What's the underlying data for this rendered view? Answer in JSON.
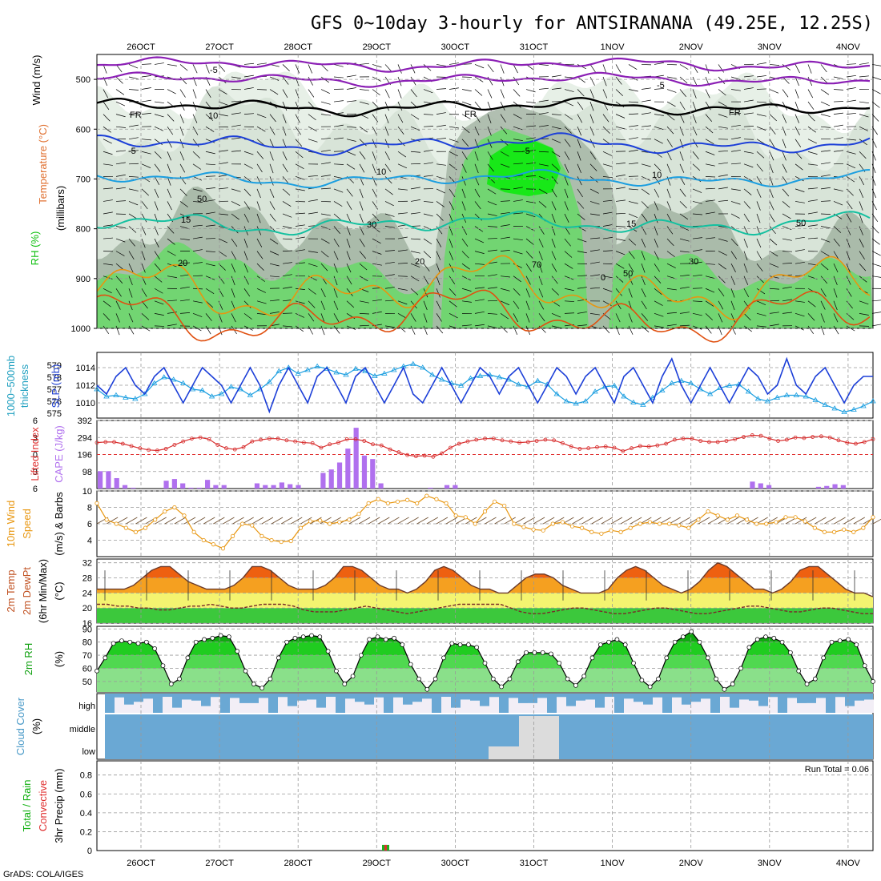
{
  "title": "GFS 0~10day 3-hourly for ANTSIRANANA (49.25E, 12.25S)",
  "footer": "GrADS: COLA/IGES",
  "date_labels": [
    "26OCT",
    "27OCT",
    "28OCT",
    "29OCT",
    "30OCT",
    "31OCT",
    "1NOV",
    "2NOV",
    "3NOV",
    "4NOV"
  ],
  "colors": {
    "purple": "#8b1fb5",
    "blue": "#1c3fd8",
    "cyan": "#1a9ee0",
    "teal": "#14c0a0",
    "orange": "#e8960f",
    "red": "#e05010",
    "rh_light": "#d7e3d7",
    "rh_mid": "#a8b8a8",
    "green_l": "#6fd66f",
    "green_b": "#18e818"
  },
  "panels": {
    "upper": {
      "ylabels": [
        "Temperature",
        "(°C)",
        "Wind",
        "(m/s)",
        "RH (%)",
        "(millibars)"
      ]
    },
    "slp": {
      "ylabels": [
        "1000~500mb",
        "thickness",
        "(dm)",
        "SLP (mb)"
      ]
    },
    "cape": {
      "ylabels": [
        "Lifted Index",
        "CAPE (J/kg)"
      ]
    },
    "wind10": {
      "ylabels": [
        "10m Wind",
        "Speed",
        "(m/s) & Barbs"
      ]
    },
    "temp2m": {
      "ylabels": [
        "2m Temp",
        "2m DewPt",
        "(6hr Min/Max)",
        "(°C)"
      ]
    },
    "rh2m": {
      "ylabels": [
        "2m RH",
        "(%)"
      ]
    },
    "cloud": {
      "ylabels": [
        "Cloud Cover",
        "(%)"
      ],
      "levels": [
        "high",
        "middle",
        "low"
      ]
    },
    "precip": {
      "ylabels": [
        "Total / Rain",
        "Convective",
        "3hr Precip (mm)"
      ],
      "run_total": "Run Total = 0.06"
    }
  },
  "chart_data": [
    {
      "type": "heatmap",
      "name": "upper",
      "y_ticks": [
        500,
        600,
        700,
        800,
        900,
        1000
      ],
      "contour_labels": [
        "-5",
        "-5",
        "FR",
        "FR",
        "FR",
        "-5",
        "-5",
        "10",
        "10",
        "15",
        "15",
        "20",
        "20",
        "50",
        "50",
        "30",
        "30",
        "70",
        "50",
        "0",
        "10"
      ]
    },
    {
      "type": "line",
      "name": "slp_thickness",
      "left_ticks": [
        575,
        576,
        577,
        578,
        579
      ],
      "right_ticks": [
        1010,
        1012,
        1014
      ],
      "slp": [
        1012,
        1011,
        1013,
        1014,
        1012,
        1011,
        1013,
        1014,
        1012,
        1010,
        1012,
        1014,
        1013,
        1012,
        1010,
        1012,
        1014,
        1012,
        1009,
        1012,
        1014,
        1012,
        1010,
        1013,
        1014,
        1012,
        1010,
        1013,
        1014,
        1012,
        1010,
        1012,
        1014,
        1011,
        1010,
        1012,
        1014,
        1012,
        1010,
        1012,
        1014,
        1013,
        1011,
        1013,
        1014,
        1012,
        1010,
        1012,
        1014,
        1013,
        1011,
        1013,
        1014,
        1012,
        1010,
        1013,
        1014,
        1012,
        1010,
        1013,
        1015,
        1012,
        1010,
        1012,
        1014,
        1012,
        1010,
        1012,
        1014,
        1013,
        1011,
        1012,
        1015,
        1012,
        1011,
        1013,
        1014,
        1012,
        1010,
        1012,
        1013,
        1013
      ],
      "thickness": [
        577.0,
        576.4,
        576.5,
        576.3,
        576.2,
        576.6,
        577.5,
        578.0,
        577.8,
        577.5,
        577.0,
        576.9,
        576.4,
        576.6,
        577.2,
        577.0,
        576.5,
        577.0,
        577.6,
        578.5,
        578.8,
        578.3,
        578.6,
        578.9,
        578.7,
        578.4,
        578.2,
        578.7,
        578.5,
        578.1,
        578.3,
        578.6,
        578.9,
        579.1,
        578.8,
        578.2,
        577.8,
        577.5,
        577.3,
        577.9,
        578.1,
        578.2,
        578.0,
        577.8,
        577.4,
        577.2,
        577.7,
        577.4,
        576.6,
        576.0,
        575.8,
        576.0,
        576.8,
        577.2,
        577.3,
        576.4,
        575.9,
        575.7,
        576.3,
        576.9,
        577.5,
        577.7,
        577.5,
        577.0,
        576.6,
        577.1,
        577.3,
        577.4,
        576.8,
        576.2,
        576.0,
        576.3,
        576.5,
        576.5,
        576.4,
        576.1,
        575.7,
        575.4,
        575.1,
        575.3,
        575.6,
        576.0
      ]
    },
    {
      "type": "bar",
      "name": "cape_li",
      "cape_ticks": [
        98,
        196,
        294,
        392
      ],
      "li_ticks": [
        -6,
        -3,
        0,
        3,
        6
      ],
      "cape": [
        100,
        100,
        60,
        20,
        5,
        0,
        0,
        0,
        45,
        55,
        30,
        5,
        5,
        50,
        20,
        20,
        0,
        0,
        0,
        30,
        20,
        20,
        35,
        25,
        20,
        0,
        0,
        90,
        110,
        150,
        230,
        350,
        190,
        170,
        30,
        0,
        0,
        0,
        0,
        0,
        5,
        0,
        20,
        20,
        0,
        0,
        0,
        0,
        0,
        0,
        0,
        0,
        0,
        0,
        0,
        0,
        0,
        0,
        0,
        0,
        0,
        0,
        0,
        0,
        0,
        0,
        0,
        0,
        0,
        0,
        0,
        0,
        0,
        0,
        0,
        0,
        0,
        0,
        0,
        40,
        30,
        20,
        0,
        0,
        0,
        0,
        0,
        10,
        15,
        25,
        20,
        0,
        0,
        0
      ],
      "li": [
        0.9,
        0.8,
        0.8,
        1.1,
        1.5,
        1.9,
        2.2,
        2.3,
        2.0,
        1.3,
        0.7,
        0.2,
        0.0,
        0.3,
        1.3,
        1.9,
        2.1,
        1.7,
        0.7,
        0.4,
        0.2,
        0.2,
        0.5,
        0.7,
        0.9,
        1.0,
        1.8,
        1.2,
        0.9,
        0.3,
        0.3,
        0.6,
        1.2,
        1.4,
        2.1,
        2.6,
        3.1,
        3.3,
        3.2,
        3.4,
        2.8,
        1.8,
        1.1,
        0.7,
        0.4,
        0.2,
        0.2,
        0.5,
        0.7,
        0.9,
        0.8,
        0.6,
        0.4,
        0.5,
        1.0,
        1.6,
        2.0,
        1.9,
        1.7,
        1.6,
        1.8,
        2.4,
        1.9,
        1.5,
        1.6,
        1.4,
        1.1,
        0.4,
        0.2,
        0.2,
        0.6,
        0.8,
        0.8,
        0.6,
        0.3,
        -0.1,
        -0.4,
        -0.3,
        0.2,
        0.6,
        0.4,
        0.0,
        0.1,
        -0.1,
        -0.2,
        0.0,
        0.5,
        0.9,
        1.1,
        0.8,
        0.3
      ]
    },
    {
      "type": "line",
      "name": "wind10",
      "y_ticks": [
        4,
        6,
        8,
        10
      ],
      "speed": [
        8.5,
        6.5,
        6.0,
        5.5,
        5.0,
        5.5,
        6.5,
        7.5,
        8.0,
        7.0,
        5.0,
        4.0,
        3.5,
        3.0,
        4.5,
        6.0,
        5.8,
        4.5,
        4.0,
        3.8,
        3.9,
        5.5,
        6.3,
        6.4,
        6.0,
        6.2,
        6.5,
        7.2,
        8.5,
        9.0,
        8.5,
        8.7,
        8.9,
        8.5,
        9.4,
        9.0,
        8.5,
        7.0,
        6.8,
        6.0,
        7.5,
        8.7,
        8.2,
        6.0,
        5.6,
        5.3,
        5.2,
        6.0,
        6.2,
        5.7,
        5.5,
        5.0,
        4.8,
        5.2,
        5.0,
        5.5,
        6.0,
        6.2,
        6.0,
        6.0,
        5.8,
        5.5,
        6.5,
        7.5,
        7.0,
        6.5,
        7.0,
        6.5,
        6.0,
        6.0,
        6.2,
        6.8,
        6.8,
        6.3,
        5.5,
        5.0,
        5.0,
        5.3,
        5.0,
        5.5,
        6.8
      ]
    },
    {
      "type": "area",
      "name": "temp2m",
      "y_ticks": [
        16,
        20,
        24,
        28,
        32
      ],
      "temp": [
        25,
        25,
        25,
        25,
        26,
        28,
        30,
        31,
        31,
        29,
        27,
        26,
        25,
        25,
        25,
        26,
        28,
        31,
        31,
        30,
        28,
        26,
        25,
        25,
        25,
        26,
        28,
        31,
        31,
        30,
        28,
        26,
        25,
        25,
        24,
        25,
        27,
        30,
        31,
        30,
        28,
        26,
        25,
        25,
        24,
        24,
        26,
        28,
        29,
        29,
        28,
        26,
        25,
        24,
        24,
        24,
        25,
        28,
        30,
        31,
        30,
        28,
        26,
        25,
        24,
        25,
        27,
        30,
        32,
        31,
        29,
        27,
        25,
        25,
        24,
        25,
        27,
        30,
        31,
        31,
        29,
        27,
        25,
        24,
        24,
        23
      ],
      "dewpt": [
        21,
        21,
        20.5,
        20.5,
        20,
        20,
        19.5,
        19.5,
        20,
        20.5,
        20.5,
        21,
        20.5,
        20,
        20,
        20.5,
        21,
        21,
        21,
        20.5,
        19.5,
        19,
        19,
        19,
        19.5,
        20,
        20.5,
        20,
        19.5,
        19,
        18.5,
        19,
        19.5,
        20,
        20.5,
        21,
        21,
        21,
        21,
        21,
        20,
        19,
        18.5,
        18.5,
        19,
        19.5,
        20,
        20,
        19.5,
        19,
        18.5,
        18.5,
        19,
        19.5,
        20,
        20,
        19.5,
        19,
        18.5,
        18.5,
        19,
        19.5,
        20,
        20.5,
        20.5,
        20,
        19.5,
        19,
        19,
        19.5,
        20,
        20,
        19.5,
        19,
        18.5,
        18.5
      ]
    },
    {
      "type": "area",
      "name": "rh2m",
      "y_ticks": [
        50,
        60,
        70,
        80,
        90
      ],
      "rh": [
        58,
        68,
        79,
        81,
        80,
        79,
        80,
        75,
        62,
        48,
        52,
        68,
        80,
        82,
        83,
        85,
        84,
        73,
        58,
        48,
        45,
        52,
        68,
        80,
        83,
        84,
        85,
        84,
        73,
        58,
        48,
        54,
        70,
        82,
        84,
        82,
        83,
        78,
        63,
        52,
        44,
        52,
        68,
        79,
        78,
        78,
        76,
        64,
        52,
        46,
        52,
        65,
        72,
        72,
        72,
        71,
        64,
        52,
        47,
        54,
        68,
        78,
        80,
        82,
        78,
        64,
        51,
        46,
        52,
        68,
        80,
        84,
        88,
        80,
        68,
        52,
        44,
        48,
        60,
        76,
        82,
        84,
        83,
        80,
        72,
        58,
        48,
        52,
        68,
        80,
        81,
        82,
        78,
        62,
        50
      ]
    },
    {
      "type": "bar",
      "name": "cloud",
      "levels": [
        "high",
        "middle",
        "low"
      ]
    },
    {
      "type": "bar",
      "name": "precip",
      "y_ticks": [
        0,
        0.2,
        0.4,
        0.6,
        0.8
      ],
      "total": [
        0.06
      ],
      "run_total": 0.06
    }
  ]
}
